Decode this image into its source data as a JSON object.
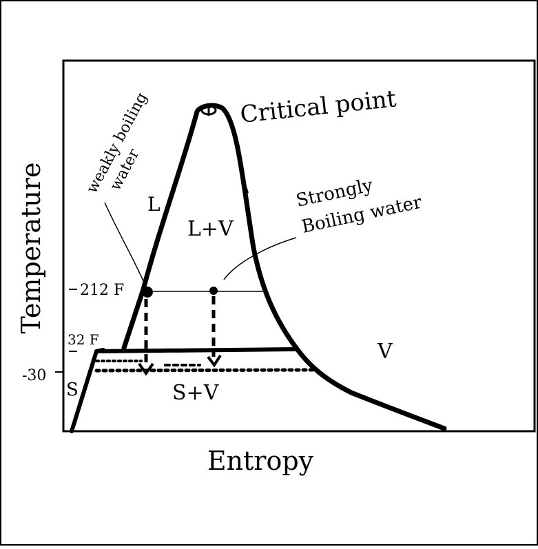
{
  "axes": {
    "x_label": "Entropy",
    "y_label": "Temperature"
  },
  "ticks": {
    "t212": "212 F",
    "t32": "32 F",
    "tm30": "-30"
  },
  "regions": {
    "liquid": "L",
    "liquid_vapor": "L+V",
    "vapor": "V",
    "solid": "S",
    "solid_vapor": "S+V"
  },
  "annotations": {
    "critical_point": "Critical point",
    "weakly_line1": "weakly boiling",
    "weakly_line2": "water",
    "strongly_line1": "Strongly",
    "strongly_line2": "Boiling water"
  },
  "colors": {
    "ink": "#000000",
    "paper": "#ffffff"
  }
}
